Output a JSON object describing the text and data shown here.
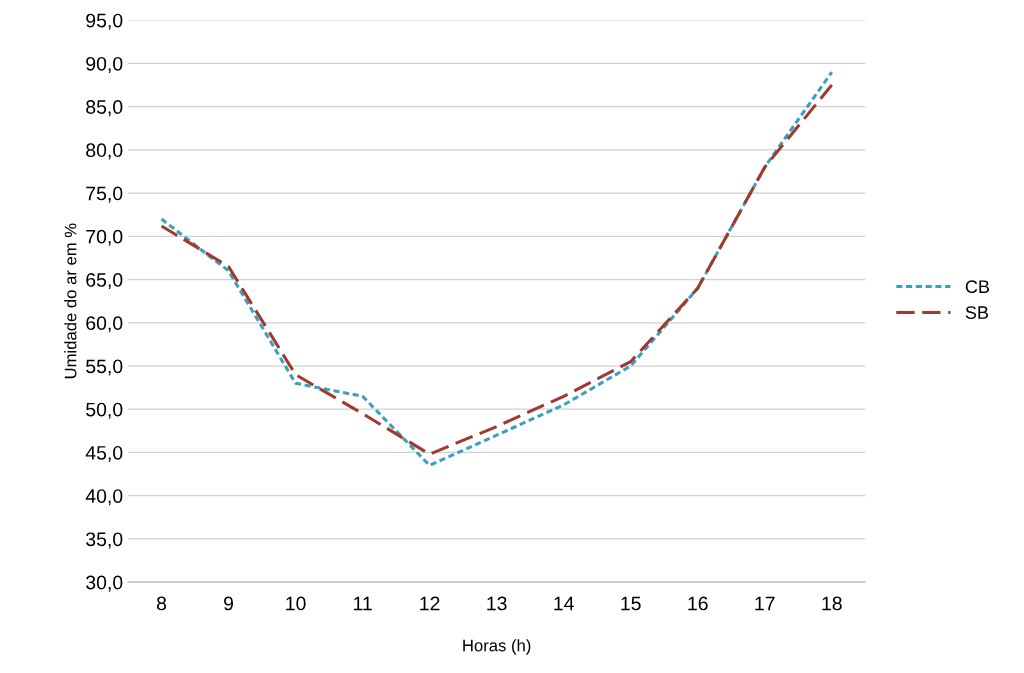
{
  "chart_data": {
    "type": "line",
    "xlabel": "Horas (h)",
    "ylabel": "Umidade do ar em %",
    "categories": [
      "8",
      "9",
      "10",
      "11",
      "12",
      "13",
      "14",
      "15",
      "16",
      "17",
      "18"
    ],
    "series": [
      {
        "name": "CB",
        "color": "#3a9fc0",
        "line_style": "dotted",
        "values": [
          72.0,
          66.0,
          53.0,
          51.5,
          43.5,
          47.0,
          50.5,
          55.0,
          64.0,
          78.0,
          89.0
        ]
      },
      {
        "name": "SB",
        "color": "#a0392e",
        "line_style": "dashed",
        "values": [
          71.2,
          66.5,
          54.0,
          49.5,
          44.8,
          48.0,
          51.5,
          55.5,
          64.0,
          78.0,
          87.5
        ]
      }
    ],
    "ylim": [
      30,
      95
    ],
    "yticks": [
      {
        "value": 30,
        "label": "30,0"
      },
      {
        "value": 35,
        "label": "35,0"
      },
      {
        "value": 40,
        "label": "40,0"
      },
      {
        "value": 45,
        "label": "45,0"
      },
      {
        "value": 50,
        "label": "50,0"
      },
      {
        "value": 55,
        "label": "55,0"
      },
      {
        "value": 60,
        "label": "60,0"
      },
      {
        "value": 65,
        "label": "65,0"
      },
      {
        "value": 70,
        "label": "70,0"
      },
      {
        "value": 75,
        "label": "75,0"
      },
      {
        "value": 80,
        "label": "80,0"
      },
      {
        "value": 85,
        "label": "85,0"
      },
      {
        "value": 90,
        "label": "90,0"
      },
      {
        "value": 95,
        "label": "95,0"
      }
    ],
    "grid": "y",
    "legend": "right",
    "marker": "none"
  }
}
